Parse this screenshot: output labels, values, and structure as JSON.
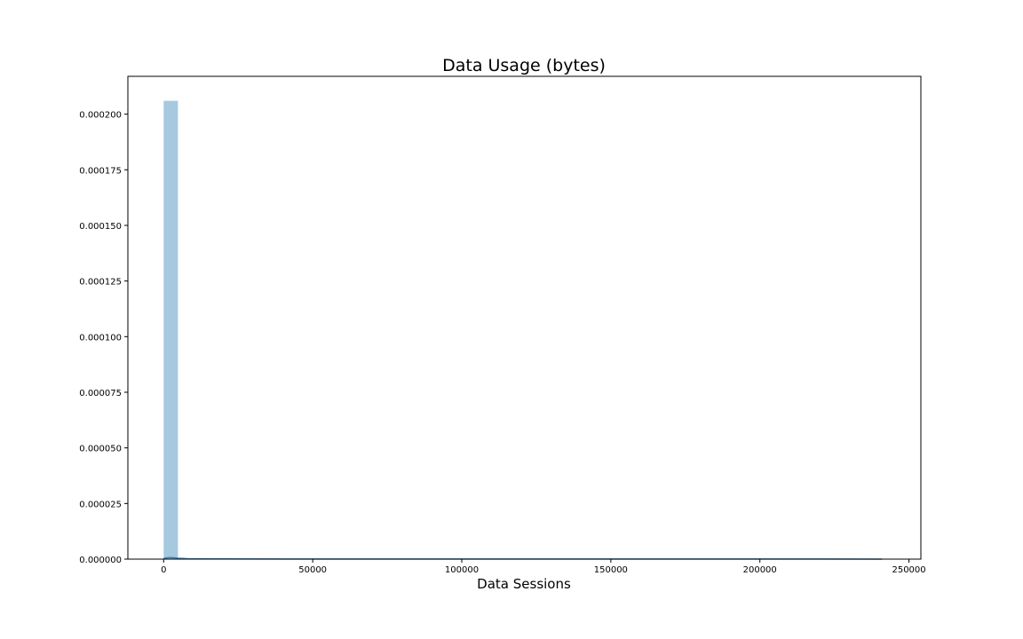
{
  "chart_data": {
    "type": "bar",
    "title": "Data Usage (bytes)",
    "xlabel": "Data Sessions",
    "ylabel": "",
    "xlim": [
      -12000,
      254000
    ],
    "ylim": [
      0,
      0.000217
    ],
    "x_ticks": [
      0,
      50000,
      100000,
      150000,
      200000,
      250000
    ],
    "x_tick_labels": [
      "0",
      "50000",
      "100000",
      "150000",
      "200000",
      "250000"
    ],
    "y_ticks": [
      0,
      2.5e-05,
      5e-05,
      7.5e-05,
      0.0001,
      0.000125,
      0.00015,
      0.000175,
      0.0002
    ],
    "y_tick_labels": [
      "0.000000",
      "0.000025",
      "0.000050",
      "0.000075",
      "0.000100",
      "0.000125",
      "0.000150",
      "0.000175",
      "0.000200"
    ],
    "bin_edges": [
      0,
      4800
    ],
    "bin_densities": [
      0.000206
    ],
    "kde": {
      "x": [
        0,
        1200,
        2400,
        3600,
        4800,
        8000,
        16000,
        40000,
        80000,
        120000,
        160000,
        200000,
        220000,
        241000
      ],
      "y": [
        3e-07,
        6e-07,
        7e-07,
        6e-07,
        4e-07,
        2e-07,
        1e-07,
        5e-08,
        4e-08,
        3e-08,
        3e-08,
        3e-08,
        4e-08,
        2e-08
      ]
    },
    "grid": false,
    "colors": {
      "bar": "#a6c9e0",
      "kde": "#3f7fb0"
    }
  }
}
